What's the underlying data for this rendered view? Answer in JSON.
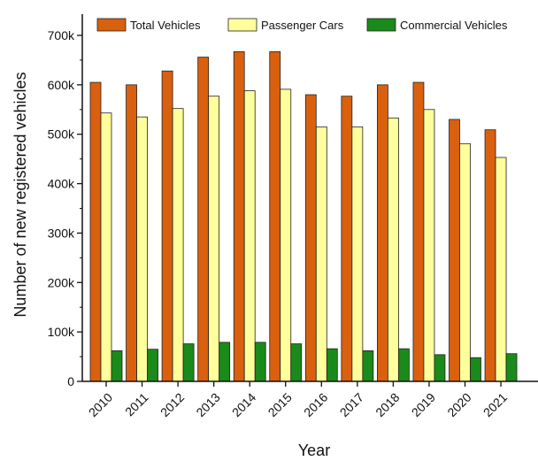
{
  "chart_data": {
    "type": "bar",
    "title": "",
    "xlabel": "Year",
    "ylabel": "Number of new registered vehicles",
    "categories": [
      "2010",
      "2011",
      "2012",
      "2013",
      "2014",
      "2015",
      "2016",
      "2017",
      "2018",
      "2019",
      "2020",
      "2021"
    ],
    "series": [
      {
        "name": "Total Vehicles",
        "color": "#d9600f",
        "values": [
          605000,
          600000,
          628000,
          656000,
          667000,
          667000,
          580000,
          577000,
          600000,
          605000,
          530000,
          509000
        ]
      },
      {
        "name": "Passenger Cars",
        "color": "#ffff9c",
        "values": [
          543000,
          535000,
          552000,
          577000,
          588000,
          591000,
          515000,
          515000,
          533000,
          550000,
          481000,
          453000
        ]
      },
      {
        "name": "Commercial Vehicles",
        "color": "#1a8a1a",
        "values": [
          62000,
          65000,
          76000,
          79000,
          79000,
          76000,
          66000,
          62000,
          66000,
          54000,
          48000,
          56000
        ]
      }
    ],
    "ylim": [
      0,
      700000
    ],
    "yticks": [
      0,
      100000,
      200000,
      300000,
      400000,
      500000,
      600000,
      700000
    ],
    "ytick_labels": [
      "0",
      "100k",
      "200k",
      "300k",
      "400k",
      "500k",
      "600k",
      "700k"
    ],
    "grid": false,
    "legend_position": "top"
  }
}
